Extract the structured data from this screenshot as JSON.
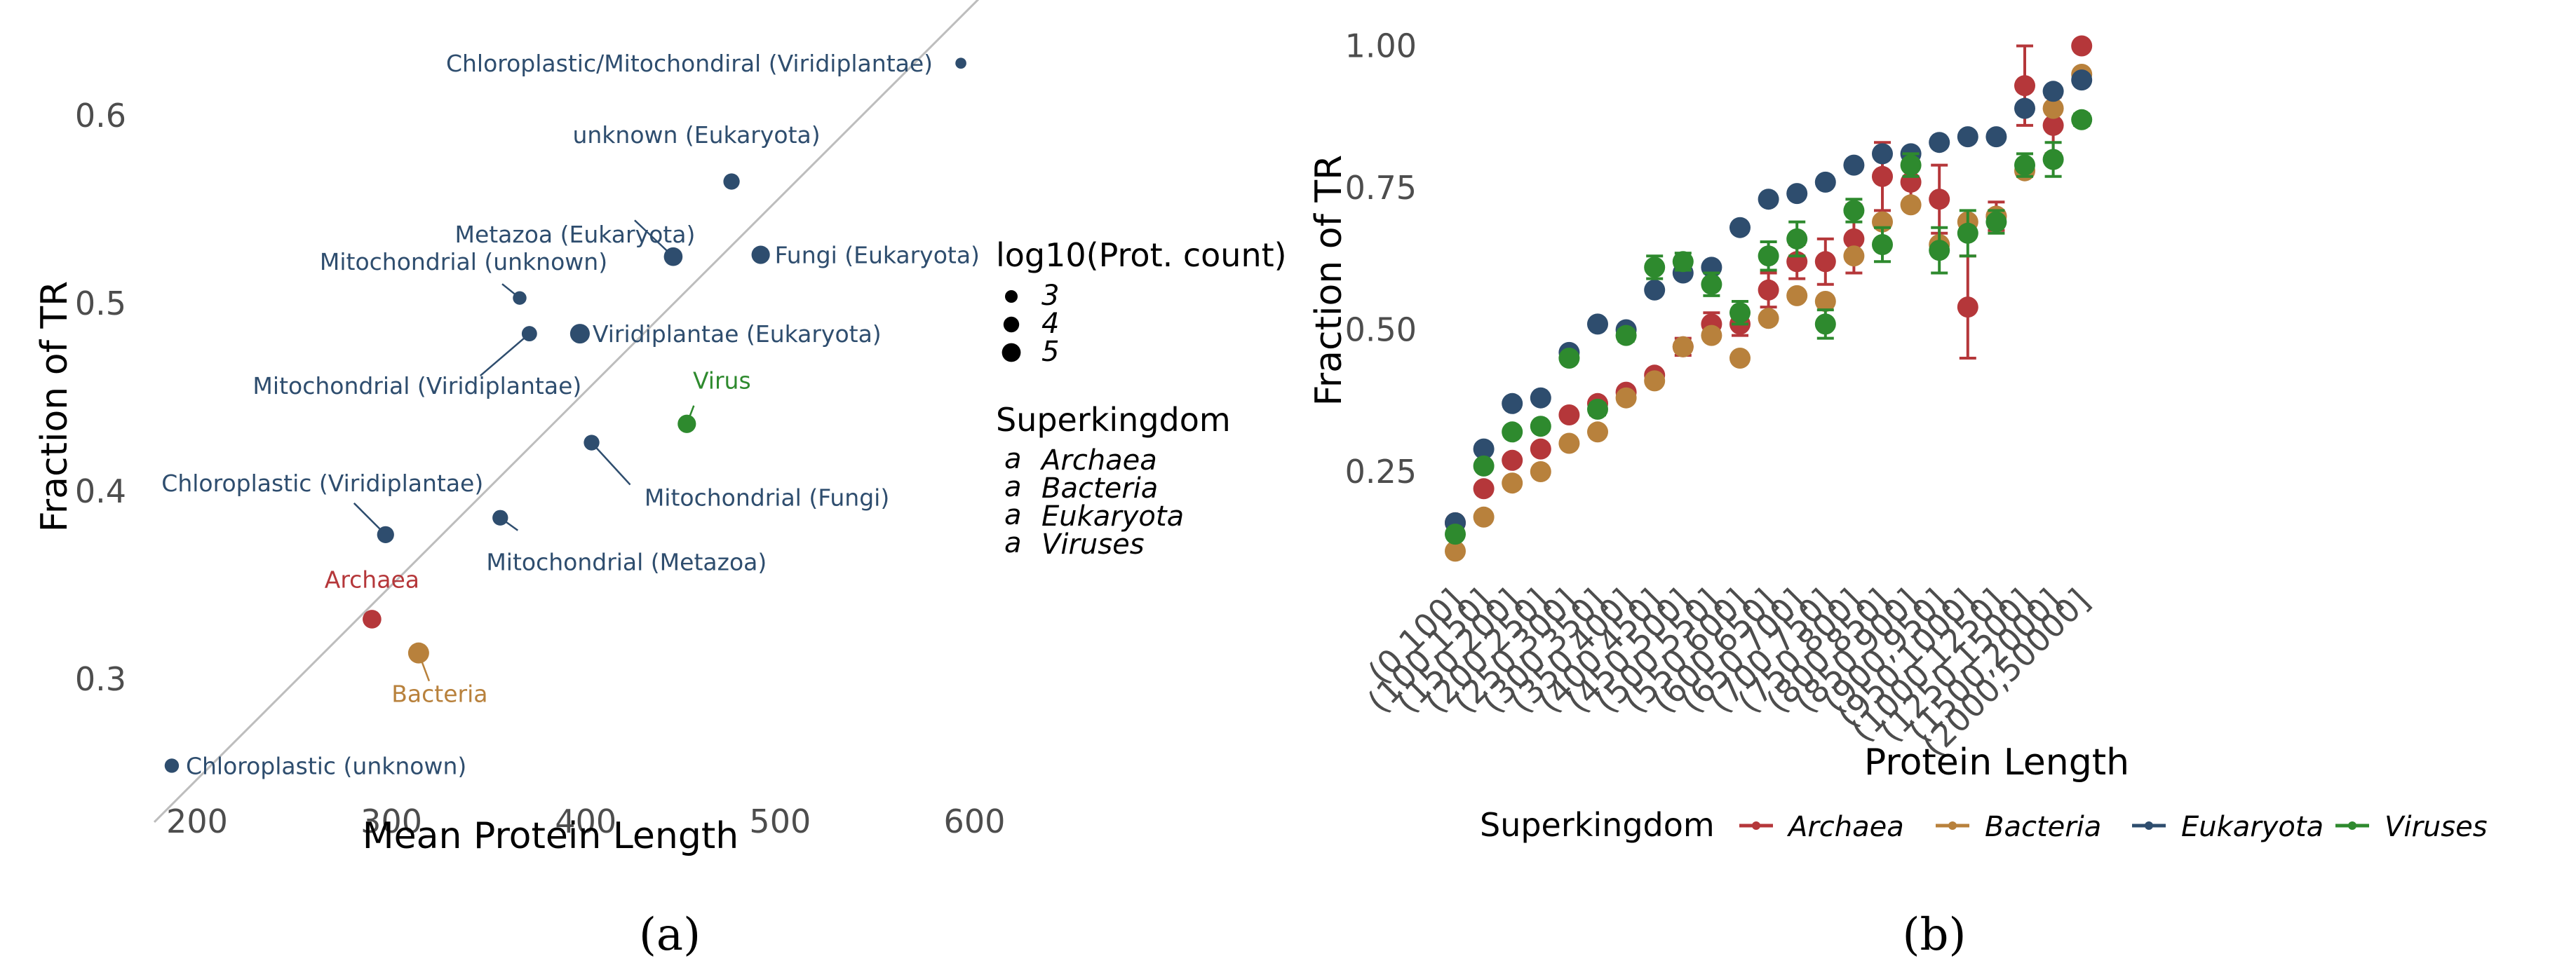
{
  "panel_labels": [
    "(a)",
    "(b)"
  ],
  "colors": {
    "Archaea": "#b5373a",
    "Bacteria": "#b8813c",
    "Eukaryota": "#2e4d6e",
    "Viruses": "#2e8a2e",
    "grid_line": "#bdbdbd"
  },
  "chart_data": [
    {
      "type": "scatter",
      "panel": "(a)",
      "title": "",
      "xlabel": "Mean Protein Length",
      "ylabel": "Fraction of TR",
      "xlim": [
        178,
        602
      ],
      "ylim": [
        0.24,
        0.643
      ],
      "xticks": [
        200,
        300,
        400,
        500,
        600
      ],
      "yticks": [
        0.3,
        0.4,
        0.5,
        0.6
      ],
      "trend_line": {
        "x": [
          178,
          602
        ],
        "y": [
          0.224,
          0.662
        ]
      },
      "size_legend": {
        "title": "log10(Prot. count)",
        "values": [
          "3",
          "4",
          "5"
        ]
      },
      "color_legend": {
        "title": "Superkingdom",
        "items": [
          "Archaea",
          "Bacteria",
          "Eukaryota",
          "Viruses"
        ]
      },
      "points": [
        {
          "label": "Chloroplastic/Mitochondiral (Viridiplantae)",
          "x": 593,
          "y": 0.628,
          "group": "Eukaryota",
          "size": 2.0
        },
        {
          "label": "unknown (Eukaryota)",
          "x": 475,
          "y": 0.565,
          "group": "Eukaryota",
          "size": 3.6
        },
        {
          "label": "Metazoa (Eukaryota)",
          "x": 445,
          "y": 0.525,
          "group": "Eukaryota",
          "size": 4.3
        },
        {
          "label": "Fungi (Eukaryota)",
          "x": 490,
          "y": 0.526,
          "group": "Eukaryota",
          "size": 4.2
        },
        {
          "label": "Mitochondrial (unknown)",
          "x": 366,
          "y": 0.503,
          "group": "Eukaryota",
          "size": 2.8
        },
        {
          "label": "Viridiplantae (Eukaryota)",
          "x": 397,
          "y": 0.484,
          "group": "Eukaryota",
          "size": 4.6
        },
        {
          "label": "Mitochondrial (Viridiplantae)",
          "x": 371,
          "y": 0.484,
          "group": "Eukaryota",
          "size": 3.3
        },
        {
          "label": "Virus",
          "x": 452,
          "y": 0.436,
          "group": "Viruses",
          "size": 4.2
        },
        {
          "label": "Mitochondrial (Fungi)",
          "x": 403,
          "y": 0.426,
          "group": "Eukaryota",
          "size": 3.4
        },
        {
          "label": "Chloroplastic (Viridiplantae)",
          "x": 297,
          "y": 0.377,
          "group": "Eukaryota",
          "size": 3.8
        },
        {
          "label": "Mitochondrial (Metazoa)",
          "x": 356,
          "y": 0.386,
          "group": "Eukaryota",
          "size": 3.4
        },
        {
          "label": "Archaea",
          "x": 290,
          "y": 0.332,
          "group": "Archaea",
          "size": 4.3
        },
        {
          "label": "Bacteria",
          "x": 314,
          "y": 0.314,
          "group": "Bacteria",
          "size": 5.0
        },
        {
          "label": "Chloroplastic (unknown)",
          "x": 187,
          "y": 0.254,
          "group": "Eukaryota",
          "size": 3.0
        }
      ]
    },
    {
      "type": "scatter",
      "subtype": "point-with-errorbars",
      "panel": "(b)",
      "title": "",
      "xlabel": "Protein Length",
      "ylabel": "Fraction of TR",
      "ylim": [
        0.05,
        1.05
      ],
      "yticks": [
        0.25,
        0.5,
        0.75,
        1.0
      ],
      "ytick_labels": [
        "0.25",
        "0.50",
        "0.75",
        "1.00"
      ],
      "categories": [
        "(0,100]",
        "(100,150]",
        "(150,200]",
        "(200,250]",
        "(250,300]",
        "(300,350]",
        "(350,400]",
        "(400,450]",
        "(450,500]",
        "(500,550]",
        "(550,600]",
        "(600,650]",
        "(650,700]",
        "(700,750]",
        "(750,800]",
        "(800,850]",
        "(850,900]",
        "(900,950]",
        "(950,1000]",
        "(1000,1250]",
        "(1250,1500]",
        "(1500,2000]",
        "(2000,50000]"
      ],
      "legend": {
        "title": "Superkingdom",
        "position": "bottom",
        "items": [
          "Archaea",
          "Bacteria",
          "Eukaryota",
          "Viruses"
        ]
      },
      "series": [
        {
          "name": "Archaea",
          "values": [
            0.16,
            0.22,
            0.27,
            0.29,
            0.35,
            0.37,
            0.39,
            0.42,
            0.47,
            0.51,
            0.51,
            0.57,
            0.62,
            0.62,
            0.66,
            0.77,
            0.76,
            0.73,
            0.54,
            0.7,
            0.93,
            0.86,
            1.0
          ],
          "err": [
            0,
            0,
            0,
            0,
            0,
            0,
            0,
            0,
            0.015,
            0.02,
            0.02,
            0.03,
            0.03,
            0.04,
            0.06,
            0.06,
            0.04,
            0.06,
            0.09,
            0.025,
            0.07,
            0.05,
            0
          ]
        },
        {
          "name": "Bacteria",
          "values": [
            0.11,
            0.17,
            0.23,
            0.25,
            0.3,
            0.32,
            0.38,
            0.41,
            0.47,
            0.49,
            0.45,
            0.52,
            0.56,
            0.55,
            0.63,
            0.69,
            0.72,
            0.65,
            0.69,
            0.7,
            0.78,
            0.89,
            0.95
          ],
          "err": [
            0,
            0,
            0,
            0,
            0,
            0,
            0,
            0,
            0,
            0,
            0,
            0,
            0,
            0,
            0,
            0,
            0,
            0,
            0,
            0,
            0,
            0,
            0
          ]
        },
        {
          "name": "Eukaryota",
          "values": [
            0.16,
            0.29,
            0.37,
            0.38,
            0.46,
            0.51,
            0.5,
            0.57,
            0.6,
            0.61,
            0.68,
            0.73,
            0.74,
            0.76,
            0.79,
            0.81,
            0.81,
            0.83,
            0.84,
            0.84,
            0.89,
            0.92,
            0.94
          ],
          "err": [
            0,
            0,
            0,
            0,
            0,
            0,
            0,
            0,
            0,
            0,
            0,
            0,
            0,
            0,
            0,
            0,
            0,
            0,
            0,
            0,
            0,
            0,
            0
          ]
        },
        {
          "name": "Viruses",
          "values": [
            0.14,
            0.26,
            0.32,
            0.33,
            0.45,
            0.36,
            0.49,
            0.61,
            0.62,
            0.58,
            0.53,
            0.63,
            0.66,
            0.51,
            0.71,
            0.65,
            0.79,
            0.64,
            0.67,
            0.69,
            0.79,
            0.8,
            0.87
          ],
          "err": [
            0,
            0,
            0,
            0,
            0,
            0.01,
            0.01,
            0.02,
            0.015,
            0.02,
            0.02,
            0.025,
            0.03,
            0.025,
            0.02,
            0.03,
            0.02,
            0.04,
            0.04,
            0.02,
            0.02,
            0.03,
            0.01
          ]
        }
      ]
    }
  ]
}
